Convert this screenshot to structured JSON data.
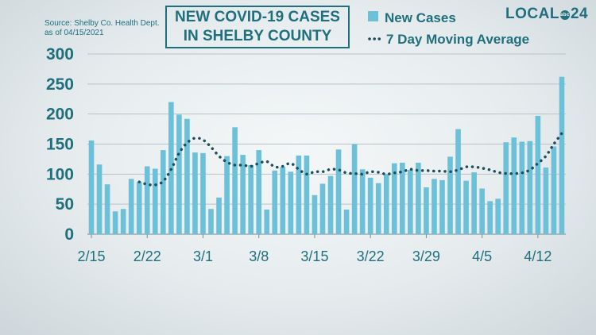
{
  "header": {
    "source_line1": "Source:  Shelby Co. Health Dept.",
    "source_line2": "as of 04/15/2021",
    "title_line1": "NEW COVID-19 CASES",
    "title_line2": "IN SHELBY COUNTY",
    "logo_text_1": "LOCAL",
    "logo_badge": "abc",
    "logo_text_2": "24"
  },
  "colors": {
    "bar": "#6cc1d8",
    "line": "#1f4e5a",
    "axis_text": "#1f6f7d",
    "grid": "#b8c3c7"
  },
  "chart_data": {
    "type": "bar",
    "title": "NEW COVID-19 CASES IN SHELBY COUNTY",
    "ylim": [
      0,
      300
    ],
    "yticks": [
      0,
      50,
      100,
      150,
      200,
      250,
      300
    ],
    "xtick_labels": [
      {
        "index": 0,
        "label": "2/15"
      },
      {
        "index": 7,
        "label": "2/22"
      },
      {
        "index": 14,
        "label": "3/1"
      },
      {
        "index": 21,
        "label": "3/8"
      },
      {
        "index": 28,
        "label": "3/15"
      },
      {
        "index": 35,
        "label": "3/22"
      },
      {
        "index": 42,
        "label": "3/29"
      },
      {
        "index": 49,
        "label": "4/5"
      },
      {
        "index": 56,
        "label": "4/12"
      }
    ],
    "legend": [
      "New Cases",
      "7 Day Moving Average"
    ],
    "legend_position": "top-right",
    "grid": true,
    "series": [
      {
        "name": "New Cases",
        "type": "bar",
        "values": [
          156,
          116,
          83,
          38,
          42,
          92,
          87,
          113,
          109,
          140,
          220,
          199,
          192,
          136,
          135,
          42,
          61,
          130,
          178,
          132,
          115,
          140,
          41,
          106,
          112,
          104,
          131,
          131,
          65,
          84,
          97,
          141,
          41,
          150,
          108,
          94,
          85,
          100,
          118,
          119,
          107,
          119,
          78,
          92,
          90,
          129,
          175,
          89,
          103,
          76,
          55,
          59,
          153,
          161,
          154,
          155,
          197,
          111,
          146,
          262
        ]
      },
      {
        "name": "7 Day Moving Average",
        "type": "line",
        "start_index": 6,
        "values": [
          87,
          83,
          82,
          88,
          108,
          135,
          152,
          160,
          157,
          145,
          130,
          120,
          115,
          115,
          113,
          118,
          121,
          112,
          113,
          118,
          108,
          100,
          104,
          104,
          108,
          107,
          102,
          101,
          100,
          104,
          103,
          100,
          102,
          104,
          108,
          106,
          106,
          105,
          105,
          104,
          107,
          112,
          112,
          110,
          107,
          103,
          101,
          101,
          102,
          107,
          118,
          130,
          150,
          168
        ]
      }
    ]
  }
}
